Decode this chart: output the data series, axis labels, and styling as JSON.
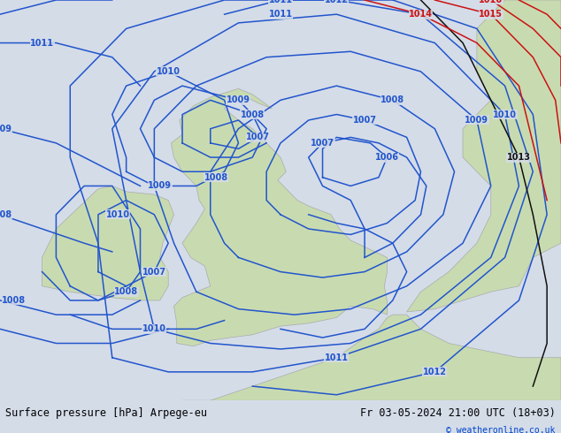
{
  "title_left": "Surface pressure [hPa] Arpege-eu",
  "title_right": "Fr 03-05-2024 21:00 UTC (18+03)",
  "copyright": "© weatheronline.co.uk",
  "bg_color": "#d4dce8",
  "land_color": "#c8dbb0",
  "land_edge_color": "#aaaaaa",
  "figsize": [
    6.34,
    4.9
  ],
  "dpi": 100,
  "blue": "#2255cc",
  "black": "#111111",
  "red": "#cc1111",
  "lw": 1.1,
  "lfs": 7,
  "footer_fs": 8.5,
  "copy_fs": 7,
  "copy_color": "#0044cc"
}
